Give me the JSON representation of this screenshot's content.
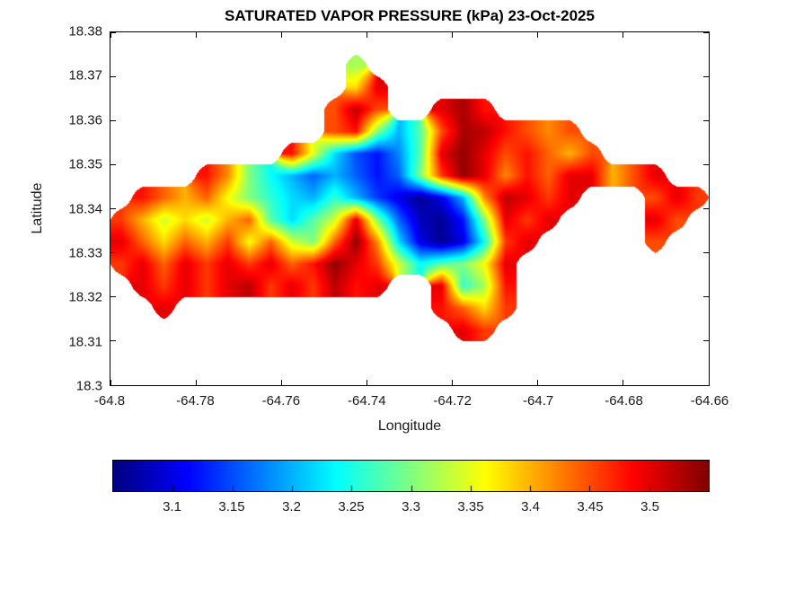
{
  "chart_data": {
    "type": "heatmap",
    "title": "SATURATED VAPOR PRESSURE (kPa) 23-Oct-2025",
    "xlabel": "Longitude",
    "ylabel": "Latitude",
    "units": "kPa",
    "xlim": [
      -64.8,
      -64.66
    ],
    "ylim": [
      18.3,
      18.38
    ],
    "xticks": [
      -64.8,
      -64.78,
      -64.76,
      -64.74,
      -64.72,
      -64.7,
      -64.68,
      -64.66
    ],
    "xtick_labels": [
      "-64.8",
      "-64.78",
      "-64.76",
      "-64.74",
      "-64.72",
      "-64.7",
      "-64.68",
      "-64.66"
    ],
    "yticks": [
      18.3,
      18.31,
      18.32,
      18.33,
      18.34,
      18.35,
      18.36,
      18.37,
      18.38
    ],
    "ytick_labels": [
      "18.3",
      "18.31",
      "18.32",
      "18.33",
      "18.34",
      "18.35",
      "18.36",
      "18.37",
      "18.38"
    ],
    "colormap": "jet",
    "clim": [
      3.05,
      3.55
    ],
    "grid_lines": "off",
    "colorbar": {
      "orientation": "horizontal",
      "ticks": [
        3.1,
        3.15,
        3.2,
        3.25,
        3.3,
        3.35,
        3.4,
        3.45,
        3.5
      ],
      "tick_labels": [
        "3.1",
        "3.15",
        "3.2",
        "3.25",
        "3.3",
        "3.35",
        "3.4",
        "3.45",
        "3.5"
      ]
    },
    "grid": {
      "comment": "Saturated vapor pressure (kPa) on a lon/lat grid; null = sea (no data)",
      "lon_start": -64.7975,
      "lon_step": 0.005,
      "lat_start": 18.3775,
      "lat_step": -0.005,
      "cols": 28,
      "rows": 16,
      "values": [
        [
          null,
          null,
          null,
          null,
          null,
          null,
          null,
          null,
          null,
          null,
          null,
          null,
          null,
          null,
          null,
          null,
          null,
          null,
          null,
          null,
          null,
          null,
          null,
          null,
          null,
          null,
          null,
          null
        ],
        [
          null,
          null,
          null,
          null,
          null,
          null,
          null,
          null,
          null,
          null,
          null,
          3.32,
          null,
          null,
          null,
          null,
          null,
          null,
          null,
          null,
          null,
          null,
          null,
          null,
          null,
          null,
          null,
          null
        ],
        [
          null,
          null,
          null,
          null,
          null,
          null,
          null,
          null,
          null,
          null,
          null,
          3.38,
          3.5,
          null,
          null,
          null,
          null,
          null,
          null,
          null,
          null,
          null,
          null,
          null,
          null,
          null,
          null,
          null
        ],
        [
          null,
          null,
          null,
          null,
          null,
          null,
          null,
          null,
          null,
          null,
          3.45,
          3.52,
          3.45,
          null,
          null,
          3.5,
          3.53,
          3.48,
          null,
          null,
          null,
          null,
          null,
          null,
          null,
          null,
          null,
          null
        ],
        [
          null,
          null,
          null,
          null,
          null,
          null,
          null,
          null,
          null,
          null,
          3.45,
          3.48,
          3.3,
          3.2,
          3.28,
          3.45,
          3.53,
          3.52,
          3.48,
          3.45,
          3.42,
          3.45,
          null,
          null,
          null,
          null,
          null,
          null
        ],
        [
          null,
          null,
          null,
          null,
          null,
          null,
          null,
          null,
          3.48,
          3.35,
          3.22,
          3.15,
          3.12,
          3.18,
          3.28,
          3.5,
          3.54,
          3.5,
          3.45,
          3.48,
          3.44,
          3.4,
          3.45,
          null,
          null,
          null,
          null,
          null
        ],
        [
          null,
          null,
          null,
          null,
          3.48,
          3.42,
          3.3,
          3.24,
          3.2,
          3.16,
          3.2,
          3.16,
          3.12,
          3.16,
          3.3,
          3.46,
          3.54,
          3.5,
          3.42,
          3.48,
          3.44,
          3.5,
          3.5,
          3.4,
          3.45,
          3.5,
          null,
          null
        ],
        [
          null,
          3.48,
          3.44,
          3.4,
          3.44,
          3.36,
          3.3,
          3.26,
          3.22,
          3.2,
          3.26,
          3.2,
          3.14,
          3.1,
          3.06,
          3.1,
          3.2,
          3.42,
          3.52,
          3.5,
          3.46,
          3.5,
          null,
          null,
          null,
          3.45,
          3.5,
          3.46
        ],
        [
          3.46,
          3.4,
          3.34,
          3.38,
          3.34,
          3.4,
          3.44,
          3.28,
          3.22,
          3.28,
          3.34,
          3.5,
          3.3,
          3.16,
          3.08,
          3.06,
          3.12,
          3.3,
          3.5,
          3.46,
          3.5,
          null,
          null,
          null,
          null,
          3.5,
          3.45,
          null
        ],
        [
          3.5,
          3.44,
          3.38,
          3.44,
          3.4,
          3.46,
          3.36,
          3.44,
          3.34,
          3.3,
          3.44,
          3.54,
          3.42,
          3.22,
          3.1,
          3.06,
          3.1,
          3.24,
          3.46,
          3.5,
          null,
          null,
          null,
          null,
          null,
          3.45,
          null,
          null
        ],
        [
          3.46,
          3.5,
          3.44,
          3.5,
          3.46,
          3.5,
          3.46,
          3.5,
          3.44,
          3.48,
          3.54,
          3.5,
          3.46,
          3.34,
          3.24,
          3.28,
          3.3,
          3.36,
          3.5,
          null,
          null,
          null,
          null,
          null,
          null,
          null,
          null,
          null
        ],
        [
          null,
          3.5,
          3.46,
          3.5,
          3.46,
          3.5,
          3.52,
          3.46,
          3.5,
          3.46,
          3.52,
          3.48,
          3.5,
          null,
          null,
          3.5,
          3.26,
          3.32,
          3.48,
          null,
          null,
          null,
          null,
          null,
          null,
          null,
          null,
          null
        ],
        [
          null,
          null,
          3.5,
          null,
          null,
          null,
          null,
          null,
          null,
          null,
          null,
          null,
          null,
          null,
          null,
          3.48,
          3.44,
          3.38,
          3.46,
          null,
          null,
          null,
          null,
          null,
          null,
          null,
          null,
          null
        ],
        [
          null,
          null,
          null,
          null,
          null,
          null,
          null,
          null,
          null,
          null,
          null,
          null,
          null,
          null,
          null,
          null,
          3.5,
          3.46,
          null,
          null,
          null,
          null,
          null,
          null,
          null,
          null,
          null,
          null
        ],
        [
          null,
          null,
          null,
          null,
          null,
          null,
          null,
          null,
          null,
          null,
          null,
          null,
          null,
          null,
          null,
          null,
          null,
          null,
          null,
          null,
          null,
          null,
          null,
          null,
          null,
          null,
          null,
          null
        ],
        [
          null,
          null,
          null,
          null,
          null,
          null,
          null,
          null,
          null,
          null,
          null,
          null,
          null,
          null,
          null,
          null,
          null,
          null,
          null,
          null,
          null,
          null,
          null,
          null,
          null,
          null,
          null,
          null
        ]
      ]
    }
  }
}
